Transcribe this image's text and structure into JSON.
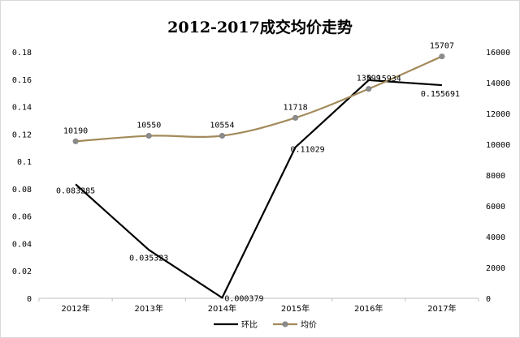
{
  "chart_data": {
    "type": "line",
    "title": "2012-2017成交均价走势",
    "categories": [
      "2012年",
      "2013年",
      "2014年",
      "2015年",
      "2016年",
      "2017年"
    ],
    "series": [
      {
        "name": "环比",
        "axis": "left",
        "color": "#000000",
        "values": [
          0.083285,
          0.035323,
          0.000379,
          0.11029,
          0.15934,
          0.155691
        ],
        "labels": [
          "0.083285",
          "0.035323",
          "0.000379",
          "0.11029",
          "0.15934",
          "0.155691"
        ],
        "smooth": false,
        "markers": false
      },
      {
        "name": "均价",
        "axis": "right",
        "color": "#a38a5a",
        "marker_color": "#8c8c8c",
        "values": [
          10190,
          10550,
          10554,
          11718,
          13599,
          15707
        ],
        "labels": [
          "10190",
          "10550",
          "10554",
          "11718",
          "13599",
          "15707"
        ],
        "smooth": true,
        "markers": true
      }
    ],
    "y_left": {
      "ylim": [
        0,
        0.18
      ],
      "ticks": [
        0,
        0.02,
        0.04,
        0.06,
        0.08,
        0.1,
        0.12,
        0.14,
        0.16,
        0.18
      ],
      "tick_labels": [
        "0",
        "0.02",
        "0.04",
        "0.06",
        "0.08",
        "0.1",
        "0.12",
        "0.14",
        "0.16",
        "0.18"
      ]
    },
    "y_right": {
      "ylim": [
        0,
        16000
      ],
      "ticks": [
        0,
        2000,
        4000,
        6000,
        8000,
        10000,
        12000,
        14000,
        16000
      ],
      "tick_labels": [
        "0",
        "2000",
        "4000",
        "6000",
        "8000",
        "10000",
        "12000",
        "14000",
        "16000"
      ]
    },
    "grid": false,
    "legend": {
      "position": "bottom",
      "entries": [
        "环比",
        "均价"
      ]
    }
  }
}
